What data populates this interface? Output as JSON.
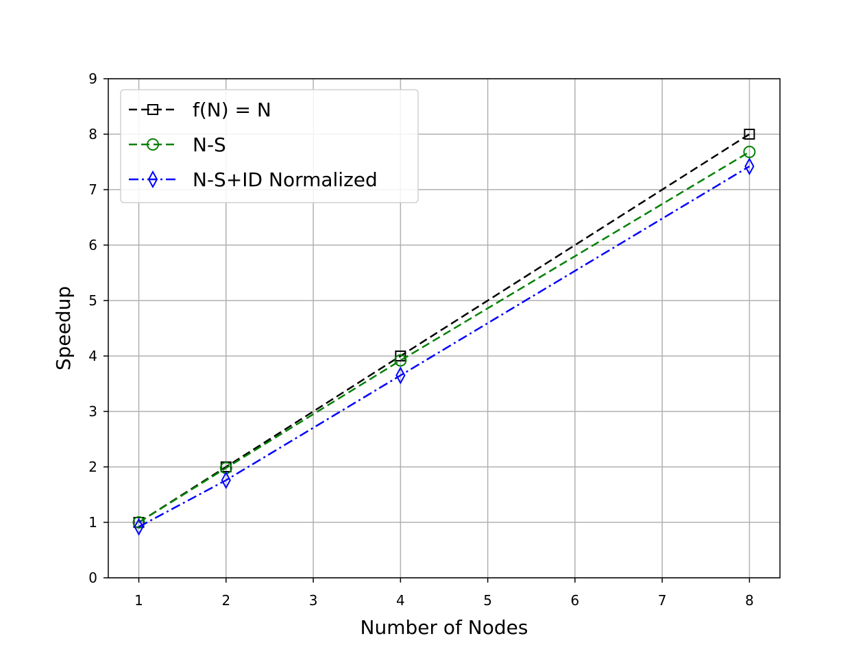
{
  "chart_data": {
    "type": "line",
    "xlabel": "Number of Nodes",
    "ylabel": "Speedup",
    "xlim": [
      0.65,
      8.35
    ],
    "ylim": [
      0,
      9
    ],
    "x_ticks": [
      1,
      2,
      3,
      4,
      5,
      6,
      7,
      8
    ],
    "y_ticks": [
      0,
      1,
      2,
      3,
      4,
      5,
      6,
      7,
      8,
      9
    ],
    "grid": true,
    "legend_position": "upper-left",
    "series": [
      {
        "name": "f(N) = N",
        "x": [
          1,
          2,
          4,
          8
        ],
        "y": [
          1,
          2,
          4,
          8
        ],
        "color": "#000000",
        "line_style": "dashed",
        "marker": "square"
      },
      {
        "name": "N-S",
        "x": [
          1,
          2,
          4,
          8
        ],
        "y": [
          1.0,
          1.98,
          3.92,
          7.68
        ],
        "color": "#008000",
        "line_style": "dashed",
        "marker": "circle"
      },
      {
        "name": "N-S+ID Normalized",
        "x": [
          1,
          2,
          4,
          8
        ],
        "y": [
          0.92,
          1.76,
          3.65,
          7.42
        ],
        "color": "#0000ff",
        "line_style": "dash-dot",
        "marker": "diamond"
      }
    ]
  }
}
